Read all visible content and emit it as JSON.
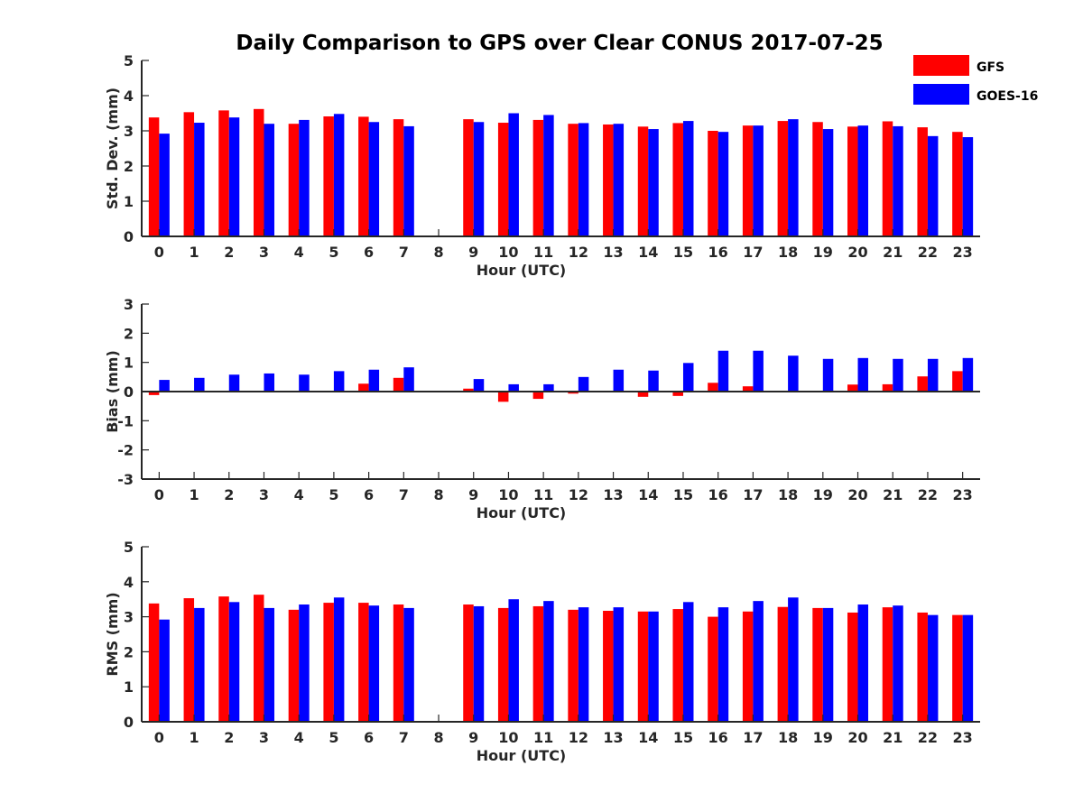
{
  "title": "Daily Comparison to GPS over Clear CONUS 2017-07-25",
  "legend": [
    {
      "label": "GFS",
      "color": "#ff0000"
    },
    {
      "label": "GOES-16",
      "color": "#0000ff"
    }
  ],
  "chart_data": [
    {
      "type": "bar",
      "title": "Daily Comparison to GPS over Clear CONUS 2017-07-25",
      "xlabel": "Hour (UTC)",
      "ylabel": "Std. Dev. (mm)",
      "ylim": [
        0,
        5
      ],
      "yticks": [
        "0",
        "1",
        "2",
        "3",
        "4",
        "5"
      ],
      "categories": [
        "0",
        "1",
        "2",
        "3",
        "4",
        "5",
        "6",
        "7",
        "8",
        "9",
        "10",
        "11",
        "12",
        "13",
        "14",
        "15",
        "16",
        "17",
        "18",
        "19",
        "20",
        "21",
        "22",
        "23"
      ],
      "series": [
        {
          "name": "GFS",
          "color": "#ff0000",
          "values": [
            3.38,
            3.53,
            3.58,
            3.62,
            3.2,
            3.41,
            3.4,
            3.33,
            null,
            3.33,
            3.23,
            3.31,
            3.2,
            3.18,
            3.12,
            3.22,
            3.0,
            3.15,
            3.28,
            3.25,
            3.12,
            3.27,
            3.1,
            2.97
          ]
        },
        {
          "name": "GOES-16",
          "color": "#0000ff",
          "values": [
            2.92,
            3.23,
            3.38,
            3.2,
            3.31,
            3.48,
            3.25,
            3.13,
            null,
            3.25,
            3.5,
            3.45,
            3.22,
            3.2,
            3.05,
            3.28,
            2.97,
            3.15,
            3.33,
            3.05,
            3.15,
            3.13,
            2.85,
            2.82
          ]
        }
      ]
    },
    {
      "type": "bar",
      "xlabel": "Hour (UTC)",
      "ylabel": "Bias (mm)",
      "ylim": [
        -3,
        3
      ],
      "yticks": [
        "-3",
        "-2",
        "-1",
        "0",
        "1",
        "2",
        "3"
      ],
      "categories": [
        "0",
        "1",
        "2",
        "3",
        "4",
        "5",
        "6",
        "7",
        "8",
        "9",
        "10",
        "11",
        "12",
        "13",
        "14",
        "15",
        "16",
        "17",
        "18",
        "19",
        "20",
        "21",
        "22",
        "23"
      ],
      "series": [
        {
          "name": "GFS",
          "color": "#ff0000",
          "values": [
            -0.12,
            -0.03,
            0.02,
            0.0,
            0.0,
            0.02,
            0.27,
            0.47,
            null,
            0.1,
            -0.35,
            -0.25,
            -0.07,
            -0.03,
            -0.18,
            -0.15,
            0.3,
            0.18,
            0.0,
            0.0,
            0.24,
            0.25,
            0.52,
            0.7
          ]
        },
        {
          "name": "GOES-16",
          "color": "#0000ff",
          "values": [
            0.4,
            0.47,
            0.58,
            0.62,
            0.58,
            0.7,
            0.75,
            0.83,
            null,
            0.43,
            0.25,
            0.25,
            0.5,
            0.75,
            0.72,
            0.98,
            1.4,
            1.4,
            1.23,
            1.12,
            1.15,
            1.12,
            1.12,
            1.15
          ]
        }
      ]
    },
    {
      "type": "bar",
      "xlabel": "Hour (UTC)",
      "ylabel": "RMS (mm)",
      "ylim": [
        0,
        5
      ],
      "yticks": [
        "0",
        "1",
        "2",
        "3",
        "4",
        "5"
      ],
      "categories": [
        "0",
        "1",
        "2",
        "3",
        "4",
        "5",
        "6",
        "7",
        "8",
        "9",
        "10",
        "11",
        "12",
        "13",
        "14",
        "15",
        "16",
        "17",
        "18",
        "19",
        "20",
        "21",
        "22",
        "23"
      ],
      "series": [
        {
          "name": "GFS",
          "color": "#ff0000",
          "values": [
            3.38,
            3.53,
            3.58,
            3.63,
            3.2,
            3.4,
            3.4,
            3.35,
            null,
            3.35,
            3.25,
            3.3,
            3.2,
            3.17,
            3.15,
            3.22,
            3.0,
            3.15,
            3.28,
            3.25,
            3.12,
            3.27,
            3.12,
            3.05
          ]
        },
        {
          "name": "GOES-16",
          "color": "#0000ff",
          "values": [
            2.92,
            3.25,
            3.42,
            3.25,
            3.35,
            3.55,
            3.32,
            3.25,
            null,
            3.3,
            3.5,
            3.45,
            3.27,
            3.27,
            3.15,
            3.42,
            3.27,
            3.45,
            3.55,
            3.25,
            3.35,
            3.32,
            3.05,
            3.05
          ]
        }
      ]
    }
  ]
}
